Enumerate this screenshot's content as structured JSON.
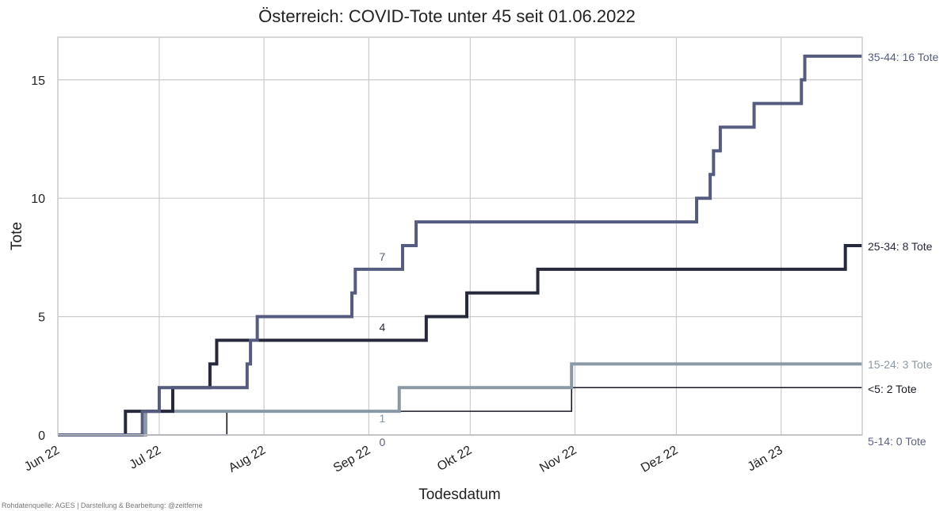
{
  "chart_data": {
    "type": "line",
    "step": true,
    "title": "Österreich: COVID-Tote unter 45 seit 01.06.2022",
    "xlabel": "Todesdatum",
    "ylabel": "Tote",
    "xlim": [
      "2022-06-01",
      "2023-01-25"
    ],
    "ylim": [
      0,
      16.8
    ],
    "grid": true,
    "x_ticks": [
      {
        "date": "2022-06-01",
        "label": "Jun 22"
      },
      {
        "date": "2022-07-01",
        "label": "Jul 22"
      },
      {
        "date": "2022-08-01",
        "label": "Aug 22"
      },
      {
        "date": "2022-09-01",
        "label": "Sep 22"
      },
      {
        "date": "2022-10-01",
        "label": "Okt 22"
      },
      {
        "date": "2022-11-01",
        "label": "Nov 22"
      },
      {
        "date": "2022-12-01",
        "label": "Dez 22"
      },
      {
        "date": "2023-01-01",
        "label": "Jän 23"
      }
    ],
    "y_ticks": [
      {
        "value": 0,
        "label": "0"
      },
      {
        "value": 5,
        "label": "5"
      },
      {
        "value": 10,
        "label": "10"
      },
      {
        "value": 15,
        "label": "15"
      }
    ],
    "series": [
      {
        "name": "<5",
        "label": "<5: 2 Tote",
        "color": "#1a1a24",
        "width": 1.6,
        "steps": [
          [
            "2022-06-01",
            0
          ],
          [
            "2022-07-21",
            1
          ],
          [
            "2022-10-31",
            2
          ],
          [
            "2023-01-25",
            2
          ]
        ]
      },
      {
        "name": "5-14",
        "label": "5-14: 0 Tote",
        "color": "#5f6385",
        "width": 1.6,
        "steps": [
          [
            "2022-06-01",
            0
          ],
          [
            "2023-01-25",
            0
          ]
        ]
      },
      {
        "name": "15-24",
        "label": "15-24: 3 Tote",
        "color": "#8a99a6",
        "width": 4,
        "steps": [
          [
            "2022-06-01",
            0
          ],
          [
            "2022-06-27",
            1
          ],
          [
            "2022-09-10",
            2
          ],
          [
            "2022-10-31",
            3
          ],
          [
            "2023-01-25",
            3
          ]
        ]
      },
      {
        "name": "25-34",
        "label": "25-34: 8 Tote",
        "color": "#272a3b",
        "width": 4,
        "steps": [
          [
            "2022-06-01",
            0
          ],
          [
            "2022-06-21",
            1
          ],
          [
            "2022-07-05",
            2
          ],
          [
            "2022-07-16",
            3
          ],
          [
            "2022-07-18",
            4
          ],
          [
            "2022-09-18",
            5
          ],
          [
            "2022-09-30",
            6
          ],
          [
            "2022-10-21",
            7
          ],
          [
            "2023-01-20",
            8
          ],
          [
            "2023-01-25",
            8
          ]
        ]
      },
      {
        "name": "35-44",
        "label": "35-44: 16 Tote",
        "color": "#555c7f",
        "width": 4,
        "steps": [
          [
            "2022-06-01",
            0
          ],
          [
            "2022-06-26",
            1
          ],
          [
            "2022-07-01",
            2
          ],
          [
            "2022-07-27",
            3
          ],
          [
            "2022-07-28",
            4
          ],
          [
            "2022-07-30",
            5
          ],
          [
            "2022-08-27",
            6
          ],
          [
            "2022-08-28",
            7
          ],
          [
            "2022-09-11",
            8
          ],
          [
            "2022-09-15",
            9
          ],
          [
            "2022-12-07",
            10
          ],
          [
            "2022-12-11",
            11
          ],
          [
            "2022-12-12",
            12
          ],
          [
            "2022-12-14",
            13
          ],
          [
            "2022-12-24",
            14
          ],
          [
            "2023-01-07",
            15
          ],
          [
            "2023-01-08",
            16
          ],
          [
            "2023-01-25",
            16
          ]
        ]
      }
    ],
    "annotations": [
      {
        "text": "7",
        "date": "2022-09-05",
        "value": 7,
        "color": "#555c7f"
      },
      {
        "text": "4",
        "date": "2022-09-05",
        "value": 4,
        "color": "#272a3b"
      },
      {
        "text": "1",
        "date": "2022-09-05",
        "value": 1,
        "color": "#8a99a6"
      },
      {
        "text": "0",
        "date": "2022-09-05",
        "value": 0,
        "color": "#5f6385"
      }
    ]
  },
  "source_note": "Rohdatenquelle: AGES | Darstellung & Bearbeitung: @zeitferne"
}
